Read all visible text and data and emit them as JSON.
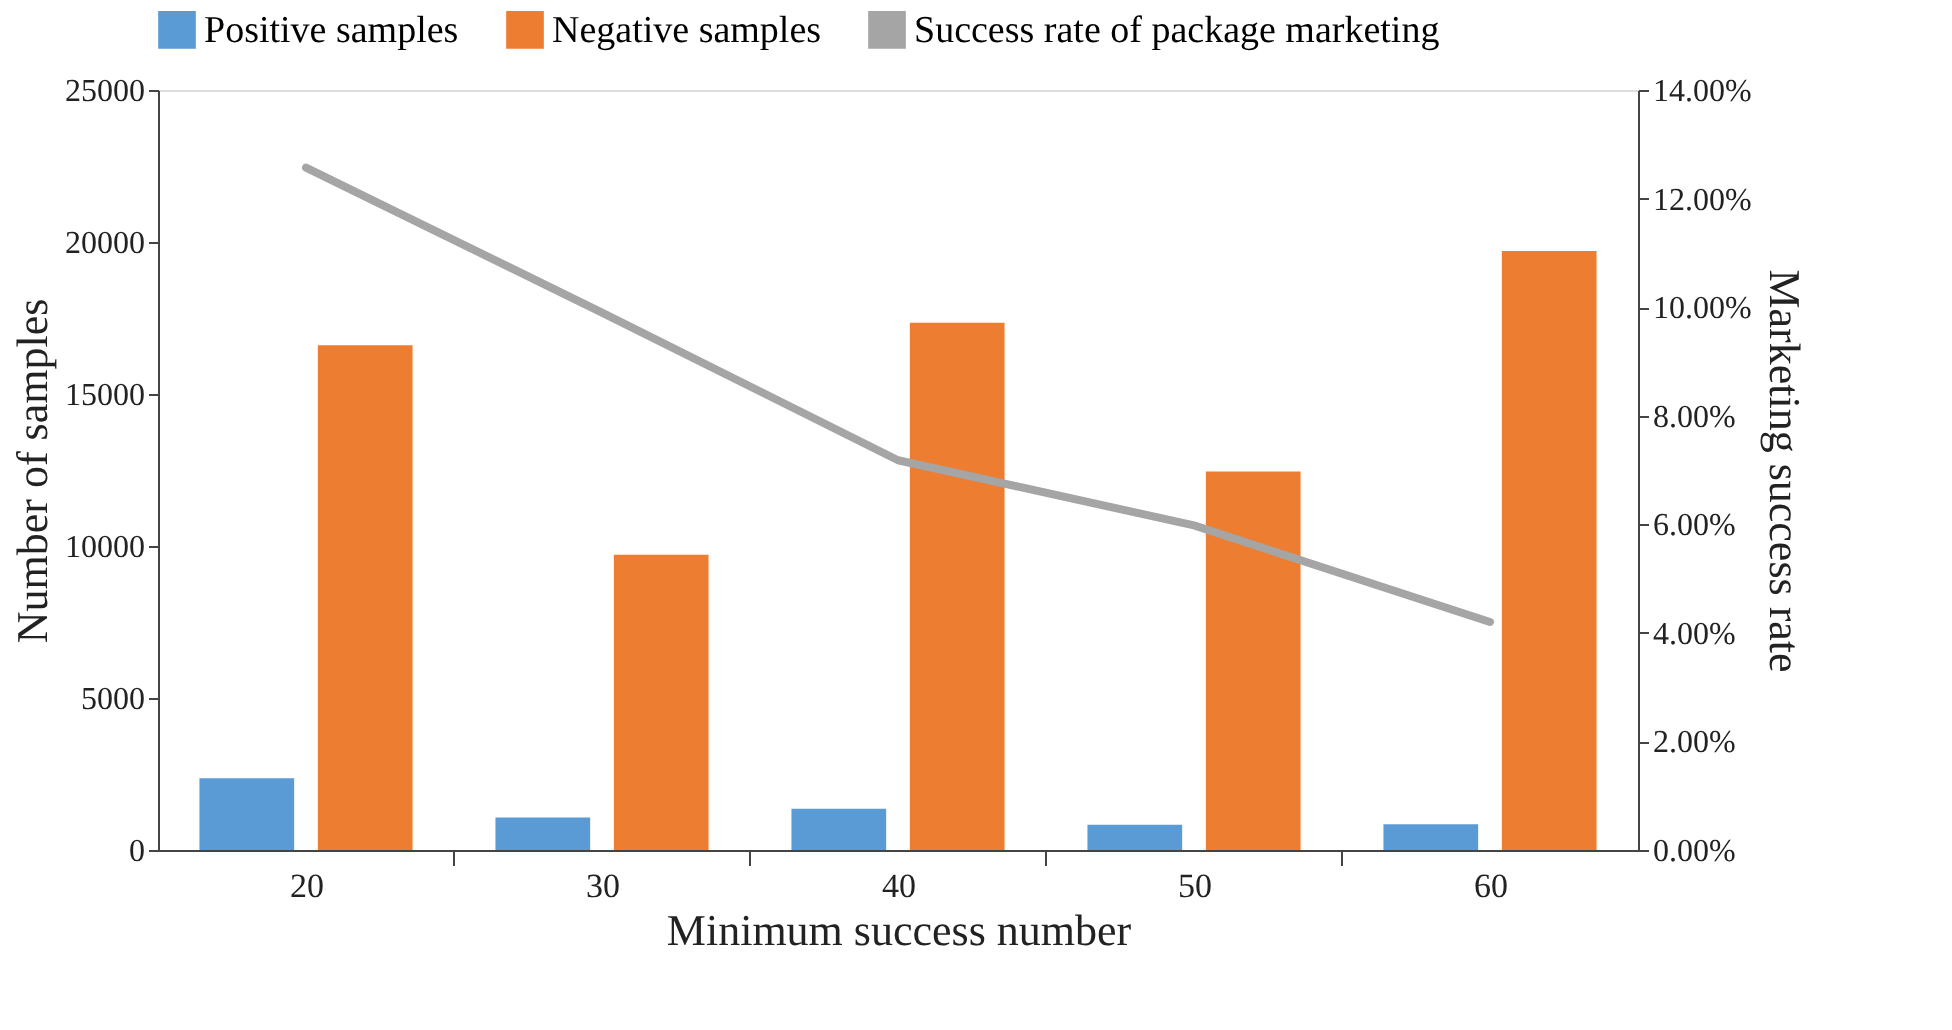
{
  "chart_data": {
    "type": "bar",
    "xlabel": "Minimum success number",
    "ylabel": "Number of samples",
    "y2label": "Marketing success rate",
    "categories": [
      "20",
      "30",
      "40",
      "50",
      "60"
    ],
    "series": [
      {
        "name": "Positive samples",
        "color": "#5b9bd5",
        "values": [
          2360,
          1070,
          1360,
          830,
          850
        ]
      },
      {
        "name": "Negative samples",
        "color": "#ed7d31",
        "values": [
          16600,
          9710,
          17340,
          12450,
          19700
        ]
      },
      {
        "name": "Success rate of package marketing",
        "type": "line",
        "axis": "y2",
        "color": "#a5a5a5",
        "values": [
          12.57,
          9.9,
          7.18,
          5.98,
          4.2
        ]
      }
    ],
    "ylim": [
      0,
      25000
    ],
    "yticks": [
      0,
      5000,
      10000,
      15000,
      20000,
      25000
    ],
    "y2lim": [
      0,
      14
    ],
    "y2ticks": [
      {
        "value": 0,
        "label": "0.00%"
      },
      {
        "value": 2,
        "label": "2.00%"
      },
      {
        "value": 4,
        "label": "4.00%"
      },
      {
        "value": 6,
        "label": "6.00%"
      },
      {
        "value": 8,
        "label": "8.00%"
      },
      {
        "value": 10,
        "label": "10.00%"
      },
      {
        "value": 12,
        "label": "12.00%"
      },
      {
        "value": 14,
        "label": "14.00%"
      }
    ],
    "grid": false,
    "legend": "top",
    "marker": "none",
    "line_style": "solid"
  }
}
